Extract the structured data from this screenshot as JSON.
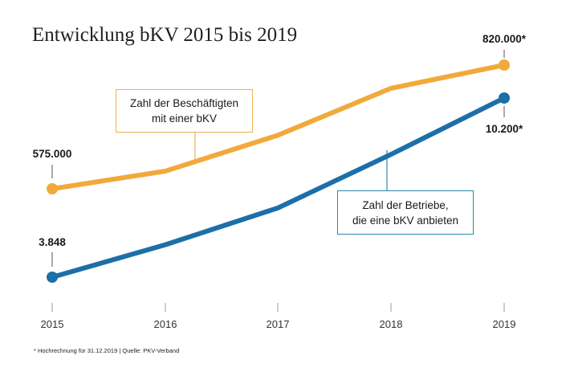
{
  "chart_data": {
    "type": "line",
    "title": "Entwicklung bKV 2015 bis 2019",
    "categories": [
      "2015",
      "2016",
      "2017",
      "2018",
      "2019"
    ],
    "series": [
      {
        "name": "Zahl der Beschäftigten mit einer bKV",
        "color": "#f2a93b",
        "values": [
          575000,
          610000,
          681000,
          774000,
          820000
        ],
        "callout": [
          "Zahl der Beschäftigten",
          "mit einer bKV"
        ],
        "start_label": "575.000",
        "end_label": "820.000*"
      },
      {
        "name": "Zahl der Betriebe, die eine bKV anbieten",
        "color": "#1c6fa8",
        "values": [
          3848,
          5000,
          6300,
          8200,
          10200
        ],
        "callout": [
          "Zahl der Betriebe,",
          "die eine bKV anbieten"
        ],
        "start_label": "3.848",
        "end_label": "10.200*"
      }
    ],
    "xlabel": "",
    "ylabel": "",
    "grid": false,
    "legend": "callouts"
  },
  "footnote": "* Hochrechnung für 31.12.2019  |  Quelle: PKV-Verband"
}
